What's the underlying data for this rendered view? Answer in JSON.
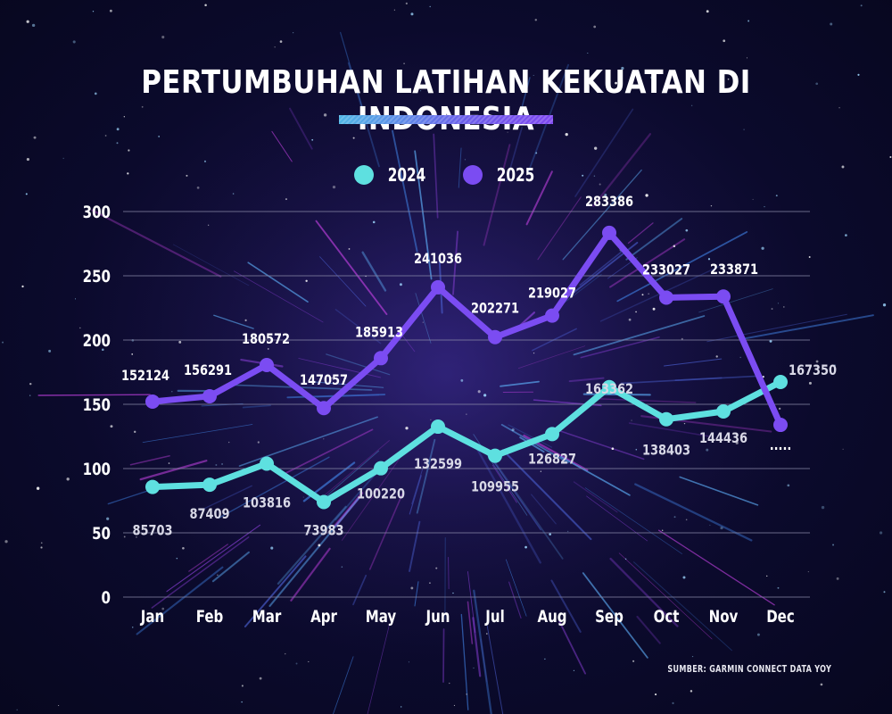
{
  "title": "PERTUMBUHAN LATIHAN KEKUATAN DI INDONESIA",
  "source": "SUMBER: GARMIN CONNECT DATA YOY",
  "colors": {
    "series_2024": "#5ee0e0",
    "series_2025": "#7b4cf2",
    "background": "#0b0a2c",
    "gridline": "#8a8aa8",
    "text": "#ffffff"
  },
  "legend": [
    {
      "label": "2024",
      "color": "#5ee0e0"
    },
    {
      "label": "2025",
      "color": "#7b4cf2"
    }
  ],
  "y_ticks": [
    "0",
    "50",
    "100",
    "150",
    "200",
    "250",
    "300"
  ],
  "x_ticks": [
    "Jan",
    "Feb",
    "Mar",
    "Apr",
    "May",
    "Jun",
    "Jul",
    "Aug",
    "Sep",
    "Oct",
    "Nov",
    "Dec"
  ],
  "chart_data": {
    "type": "line",
    "title": "PERTUMBUHAN LATIHAN KEKUATAN DI INDONESIA",
    "xlabel": "",
    "ylabel": "",
    "ylim": [
      0,
      300
    ],
    "yticks": [
      0,
      50,
      100,
      150,
      200,
      250,
      300
    ],
    "y_unit_note": "axis in thousands; data labels show raw counts",
    "grid": true,
    "legend_position": "top-center",
    "categories": [
      "Jan",
      "Feb",
      "Mar",
      "Apr",
      "May",
      "Jun",
      "Jul",
      "Aug",
      "Sep",
      "Oct",
      "Nov",
      "Dec"
    ],
    "series": [
      {
        "name": "2024",
        "color": "#5ee0e0",
        "values": [
          85703,
          87409,
          103816,
          73983,
          100220,
          132599,
          109955,
          126827,
          163362,
          138403,
          144436,
          167350
        ],
        "labels": [
          "85703",
          "87409",
          "103816",
          "73983",
          "100220",
          "132599",
          "109955",
          "126827",
          "163362",
          "138403",
          "144436",
          "167350"
        ]
      },
      {
        "name": "2025",
        "color": "#7b4cf2",
        "values": [
          152124,
          156291,
          180572,
          147057,
          185913,
          241036,
          202271,
          219027,
          283386,
          233027,
          233871,
          134000
        ],
        "labels": [
          "152124",
          "156291",
          "180572",
          "147057",
          "185913",
          "241036",
          "202271",
          "219027",
          "283386",
          "233027",
          "233871",
          "....."
        ]
      }
    ],
    "source": "SUMBER: GARMIN CONNECT DATA YOY"
  }
}
